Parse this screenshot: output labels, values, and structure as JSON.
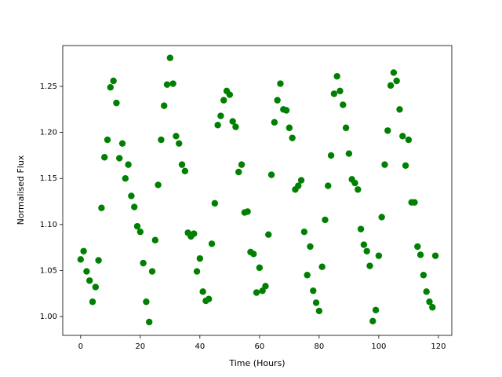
{
  "chart_data": {
    "type": "scatter",
    "x_label": "Time (Hours)",
    "y_label": "Normalised Flux",
    "color": "#008000",
    "x": [
      0,
      1,
      2,
      3,
      4,
      5,
      6,
      7,
      8,
      9,
      10,
      11,
      12,
      13,
      14,
      15,
      16,
      17,
      18,
      19,
      20,
      21,
      22,
      23,
      24,
      25,
      26,
      27,
      28,
      29,
      30,
      31,
      32,
      33,
      34,
      35,
      36,
      37,
      38,
      39,
      40,
      41,
      42,
      43,
      44,
      45,
      46,
      47,
      48,
      49,
      50,
      51,
      52,
      53,
      54,
      55,
      56,
      57,
      58,
      59,
      60,
      61,
      62,
      63,
      64,
      65,
      66,
      67,
      68,
      69,
      70,
      71,
      72,
      73,
      74,
      75,
      76,
      77,
      78,
      79,
      80,
      81,
      82,
      83,
      84,
      85,
      86,
      87,
      88,
      89,
      90,
      91,
      92,
      93,
      94,
      95,
      96,
      97,
      98,
      99,
      100,
      101,
      102,
      103,
      104,
      105,
      106,
      107,
      108,
      109,
      110,
      111,
      112,
      113,
      114,
      115,
      116,
      117,
      118,
      119
    ],
    "values": [
      1.062,
      1.071,
      1.049,
      1.039,
      1.016,
      1.032,
      1.061,
      1.118,
      1.173,
      1.192,
      1.249,
      1.256,
      1.232,
      1.172,
      1.188,
      1.15,
      1.165,
      1.131,
      1.119,
      1.098,
      1.092,
      1.058,
      1.016,
      0.994,
      1.049,
      1.083,
      1.143,
      1.192,
      1.229,
      1.252,
      1.281,
      1.253,
      1.196,
      1.188,
      1.165,
      1.158,
      1.091,
      1.087,
      1.09,
      1.049,
      1.063,
      1.027,
      1.017,
      1.019,
      1.079,
      1.123,
      1.208,
      1.218,
      1.235,
      1.245,
      1.241,
      1.212,
      1.206,
      1.157,
      1.165,
      1.113,
      1.114,
      1.07,
      1.068,
      1.026,
      1.053,
      1.028,
      1.033,
      1.089,
      1.154,
      1.211,
      1.235,
      1.253,
      1.225,
      1.224,
      1.205,
      1.194,
      1.138,
      1.142,
      1.148,
      1.092,
      1.045,
      1.076,
      1.028,
      1.015,
      1.006,
      1.054,
      1.105,
      1.142,
      1.175,
      1.242,
      1.261,
      1.245,
      1.23,
      1.205,
      1.177,
      1.149,
      1.145,
      1.138,
      1.095,
      1.078,
      1.071,
      1.055,
      0.995,
      1.007,
      1.066,
      1.108,
      1.165,
      1.202,
      1.251,
      1.265,
      1.256,
      1.225,
      1.196,
      1.164,
      1.192,
      1.124,
      1.124,
      1.076,
      1.067,
      1.045,
      1.027,
      1.016,
      1.01,
      1.066
    ],
    "xlim": [
      -6,
      124.5
    ],
    "xticks": [
      0,
      20,
      40,
      60,
      80,
      100,
      120
    ],
    "ylim": [
      0.9795,
      1.2944
    ],
    "yticks": [
      {
        "value": 1,
        "label": "1.00"
      },
      1.05,
      {
        "value": 1.1,
        "label": "1.10"
      },
      1.15,
      {
        "value": 1.2,
        "label": "1.20"
      },
      1.25
    ],
    "grid": false
  }
}
